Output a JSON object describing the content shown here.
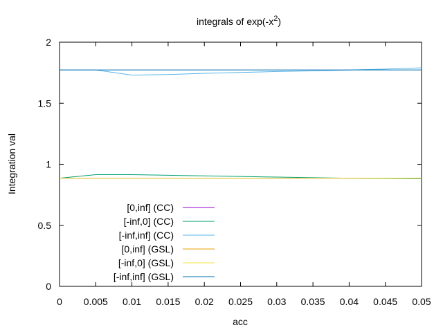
{
  "chart_data": {
    "type": "line",
    "title": {
      "prefix": "integrals of exp(-x",
      "superscript": "2",
      "suffix": ")"
    },
    "xlabel": "acc",
    "ylabel": "Integration val",
    "xlim": [
      0,
      0.05
    ],
    "ylim": [
      0,
      2
    ],
    "xticks": [
      0,
      0.005,
      0.01,
      0.015,
      0.02,
      0.025,
      0.03,
      0.035,
      0.04,
      0.045,
      0.05
    ],
    "xtick_labels": [
      "0",
      "0.005",
      "0.01",
      "0.015",
      "0.02",
      "0.025",
      "0.03",
      "0.035",
      "0.04",
      "0.045",
      "0.05"
    ],
    "yticks": [
      0,
      0.5,
      1,
      1.5,
      2
    ],
    "ytick_labels": [
      "0",
      "0.5",
      "1",
      "1.5",
      "2"
    ],
    "grid": false,
    "legend_position": "bottom-left",
    "series": [
      {
        "name": "[0,inf] (CC)",
        "color": "#9400d3",
        "x": [
          0,
          0.05
        ],
        "y": [
          0.8862,
          0.8862
        ]
      },
      {
        "name": "[-inf,0] (CC)",
        "color": "#009e73",
        "x": [
          0,
          0.005,
          0.01,
          0.015,
          0.02,
          0.025,
          0.03,
          0.035,
          0.04,
          0.045,
          0.05
        ],
        "y": [
          0.8862,
          0.915,
          0.915,
          0.91,
          0.905,
          0.9,
          0.895,
          0.89,
          0.886,
          0.884,
          0.882
        ]
      },
      {
        "name": "[-inf,inf] (CC)",
        "color": "#56b4e9",
        "x": [
          0,
          0.005,
          0.01,
          0.015,
          0.02,
          0.025,
          0.03,
          0.035,
          0.04,
          0.045,
          0.05
        ],
        "y": [
          1.7725,
          1.7725,
          1.73,
          1.735,
          1.745,
          1.752,
          1.76,
          1.765,
          1.772,
          1.78,
          1.79
        ]
      },
      {
        "name": "[0,inf] (GSL)",
        "color": "#e69f00",
        "x": [
          0,
          0.05
        ],
        "y": [
          0.8862,
          0.8862
        ]
      },
      {
        "name": "[-inf,0] (GSL)",
        "color": "#f0e442",
        "x": [
          0,
          0.05
        ],
        "y": [
          0.8862,
          0.8862
        ]
      },
      {
        "name": "[-inf,inf] (GSL)",
        "color": "#0072b2",
        "x": [
          0,
          0.05
        ],
        "y": [
          1.7725,
          1.7725
        ]
      }
    ]
  }
}
